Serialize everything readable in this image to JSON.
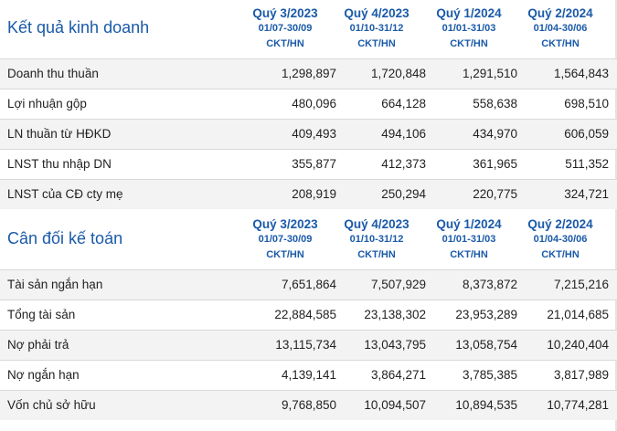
{
  "business": {
    "title": "Kết quả kinh doanh",
    "columns": [
      {
        "quarter": "Quý 3/2023",
        "range": "01/07-30/09",
        "unit": "CKT/HN"
      },
      {
        "quarter": "Quý 4/2023",
        "range": "01/10-31/12",
        "unit": "CKT/HN"
      },
      {
        "quarter": "Quý 1/2024",
        "range": "01/01-31/03",
        "unit": "CKT/HN"
      },
      {
        "quarter": "Quý 2/2024",
        "range": "01/04-30/06",
        "unit": "CKT/HN"
      }
    ],
    "rows": [
      {
        "label": "Doanh thu thuần",
        "values": [
          "1,298,897",
          "1,720,848",
          "1,291,510",
          "1,564,843"
        ]
      },
      {
        "label": "Lợi nhuận gộp",
        "values": [
          "480,096",
          "664,128",
          "558,638",
          "698,510"
        ]
      },
      {
        "label": "LN thuần từ HĐKD",
        "values": [
          "409,493",
          "494,106",
          "434,970",
          "606,059"
        ]
      },
      {
        "label": "LNST thu nhập DN",
        "values": [
          "355,877",
          "412,373",
          "361,965",
          "511,352"
        ]
      },
      {
        "label": "LNST của CĐ cty mẹ",
        "values": [
          "208,919",
          "250,294",
          "220,775",
          "324,721"
        ]
      }
    ]
  },
  "balance": {
    "title": "Cân đối kế toán",
    "columns": [
      {
        "quarter": "Quý 3/2023",
        "range": "01/07-30/09",
        "unit": "CKT/HN"
      },
      {
        "quarter": "Quý 4/2023",
        "range": "01/10-31/12",
        "unit": "CKT/HN"
      },
      {
        "quarter": "Quý 1/2024",
        "range": "01/01-31/03",
        "unit": "CKT/HN"
      },
      {
        "quarter": "Quý 2/2024",
        "range": "01/04-30/06",
        "unit": "CKT/HN"
      }
    ],
    "rows": [
      {
        "label": "Tài sản ngắn hạn",
        "values": [
          "7,651,864",
          "7,507,929",
          "8,373,872",
          "7,215,216"
        ]
      },
      {
        "label": "Tổng tài sản",
        "values": [
          "22,884,585",
          "23,138,302",
          "23,953,289",
          "21,014,685"
        ]
      },
      {
        "label": "Nợ phải trả",
        "values": [
          "13,115,734",
          "13,043,795",
          "13,058,754",
          "10,240,404"
        ]
      },
      {
        "label": "Nợ ngắn hạn",
        "values": [
          "4,139,141",
          "3,864,271",
          "3,785,385",
          "3,817,989"
        ]
      },
      {
        "label": "Vốn chủ sở hữu",
        "values": [
          "9,768,850",
          "10,094,507",
          "10,894,535",
          "10,774,281"
        ]
      }
    ]
  }
}
